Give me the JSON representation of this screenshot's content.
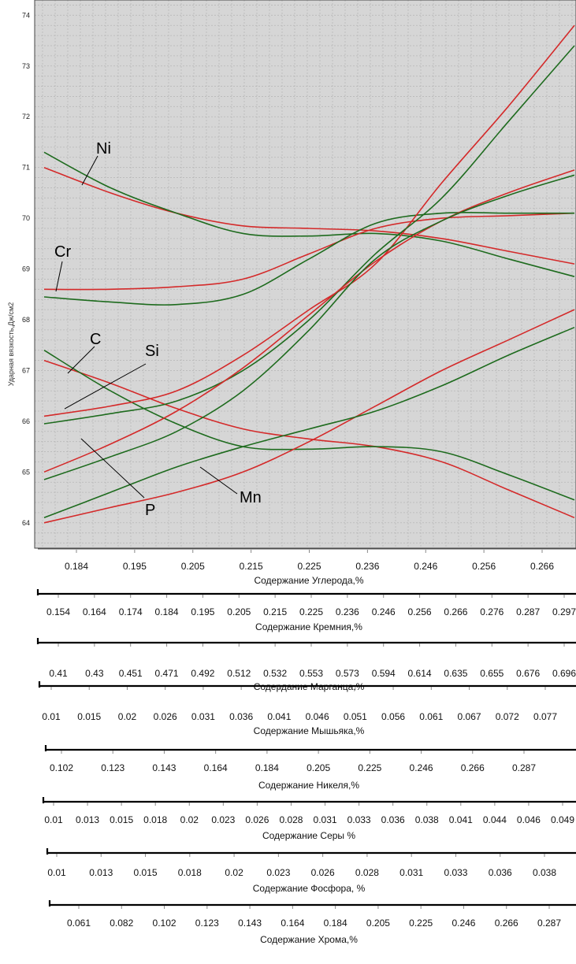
{
  "colors": {
    "red_series": "#d42a2a",
    "green_series": "#1e6b1e",
    "plot_bg": "#d6d6d6",
    "grid": "#b8b8b8"
  },
  "chart_data": {
    "type": "line",
    "ylabel": "Ударная вязкость,Дж/см2",
    "ylim": [
      63.5,
      74.3
    ],
    "y_ticks": [
      "64",
      "65",
      "66",
      "67",
      "68",
      "69",
      "70",
      "71",
      "72",
      "73",
      "74"
    ],
    "grid": true,
    "curve_labels": [
      "Ni",
      "Cr",
      "C",
      "Si",
      "P",
      "Mn"
    ],
    "x_axes": [
      {
        "title": "Содержание Углерода,%",
        "ticks": [
          "0.184",
          "0.195",
          "0.205",
          "0.215",
          "0.225",
          "0.236",
          "0.246",
          "0.256",
          "0.266"
        ]
      },
      {
        "title": "Содержание Кремния,%",
        "ticks": [
          "0.154",
          "0.164",
          "0.174",
          "0.184",
          "0.195",
          "0.205",
          "0.215",
          "0.225",
          "0.236",
          "0.246",
          "0.256",
          "0.266",
          "0.276",
          "0.287",
          "0.297"
        ]
      },
      {
        "title": "Содердание Марганца,%",
        "ticks": [
          "0.41",
          "0.43",
          "0.451",
          "0.471",
          "0.492",
          "0.512",
          "0.532",
          "0.553",
          "0.573",
          "0.594",
          "0.614",
          "0.635",
          "0.655",
          "0.676",
          "0.696"
        ]
      },
      {
        "title": "Содержание  Мышьяка,%",
        "ticks": [
          "0.01",
          "0.015",
          "0.02",
          "0.026",
          "0.031",
          "0.036",
          "0.041",
          "0.046",
          "0.051",
          "0.056",
          "0.061",
          "0.067",
          "0.072",
          "0.077"
        ]
      },
      {
        "title": "Содержание Никеля,%",
        "ticks": [
          "0.102",
          "0.123",
          "0.143",
          "0.164",
          "0.184",
          "0.205",
          "0.225",
          "0.246",
          "0.266",
          "0.287"
        ]
      },
      {
        "title": "Содержание Серы       %",
        "ticks": [
          "0.01",
          "0.013",
          "0.015",
          "0.018",
          "0.02",
          "0.023",
          "0.026",
          "0.028",
          "0.031",
          "0.033",
          "0.036",
          "0.038",
          "0.041",
          "0.044",
          "0.046",
          "0.049"
        ]
      },
      {
        "title": "Содержание Фосфора,      %",
        "ticks": [
          "0.01",
          "0.013",
          "0.015",
          "0.018",
          "0.02",
          "0.023",
          "0.026",
          "0.028",
          "0.031",
          "0.033",
          "0.036",
          "0.038"
        ]
      },
      {
        "title": "Содержание  Хрома,%",
        "ticks": [
          "0.061",
          "0.082",
          "0.102",
          "0.123",
          "0.143",
          "0.164",
          "0.184",
          "0.205",
          "0.225",
          "0.246",
          "0.266",
          "0.287"
        ]
      }
    ],
    "x_param": [
      0.0,
      0.125,
      0.25,
      0.375,
      0.5,
      0.625,
      0.75,
      0.875,
      1.0
    ],
    "series": [
      {
        "color": "red",
        "values": [
          71.0,
          70.5,
          70.1,
          69.85,
          69.8,
          69.75,
          69.6,
          69.35,
          69.1
        ]
      },
      {
        "color": "green",
        "values": [
          71.3,
          70.6,
          70.1,
          69.7,
          69.65,
          69.7,
          69.55,
          69.2,
          68.85
        ]
      },
      {
        "color": "red",
        "values": [
          68.6,
          68.6,
          68.65,
          68.8,
          69.3,
          69.8,
          70.0,
          70.05,
          70.1
        ]
      },
      {
        "color": "green",
        "values": [
          68.45,
          68.35,
          68.3,
          68.5,
          69.2,
          69.9,
          70.1,
          70.1,
          70.1
        ]
      },
      {
        "color": "red",
        "values": [
          67.2,
          66.75,
          66.25,
          65.85,
          65.65,
          65.5,
          65.2,
          64.65,
          64.1
        ]
      },
      {
        "color": "green",
        "values": [
          67.4,
          66.6,
          65.95,
          65.5,
          65.45,
          65.5,
          65.4,
          64.95,
          64.45
        ]
      },
      {
        "color": "red",
        "values": [
          66.1,
          66.3,
          66.6,
          67.3,
          68.2,
          69.1,
          70.7,
          72.2,
          73.8
        ]
      },
      {
        "color": "green",
        "values": [
          65.95,
          66.15,
          66.4,
          67.0,
          68.0,
          69.3,
          70.4,
          71.9,
          73.4
        ]
      },
      {
        "color": "red",
        "values": [
          65.0,
          65.55,
          66.2,
          67.05,
          68.1,
          69.15,
          69.95,
          70.5,
          70.95
        ]
      },
      {
        "color": "green",
        "values": [
          64.85,
          65.3,
          65.8,
          66.6,
          67.8,
          69.2,
          69.95,
          70.45,
          70.85
        ]
      },
      {
        "color": "red",
        "values": [
          64.0,
          64.3,
          64.6,
          65.0,
          65.6,
          66.3,
          67.0,
          67.6,
          68.2
        ]
      },
      {
        "color": "green",
        "values": [
          64.1,
          64.6,
          65.1,
          65.5,
          65.85,
          66.2,
          66.7,
          67.3,
          67.85
        ]
      }
    ]
  }
}
